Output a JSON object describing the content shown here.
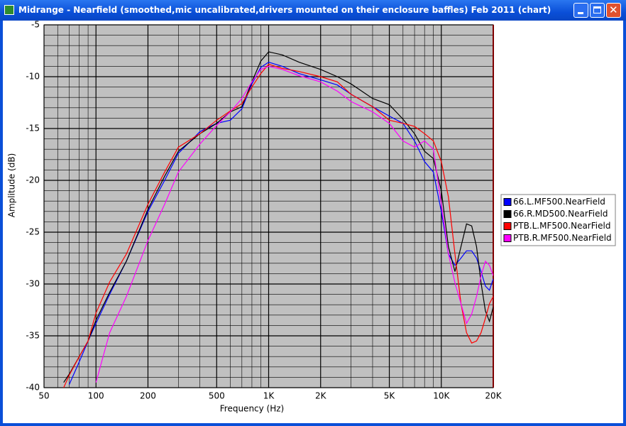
{
  "window": {
    "title": "Midrange - Nearfield (smoothed,mic uncalibrated,drivers mounted on their enclosure baffles) Feb 2011 (chart)"
  },
  "chart_data": {
    "type": "line",
    "x_label": "Frequency (Hz)",
    "y_label": "Amplitude (dB)",
    "x_scale": "log",
    "xlim": [
      50,
      20000
    ],
    "ylim": [
      -40,
      -5
    ],
    "xticks": [
      50,
      100,
      200,
      500,
      {
        "value": 1000,
        "label": "1K"
      },
      {
        "value": 2000,
        "label": "2K"
      },
      {
        "value": 5000,
        "label": "5K"
      },
      {
        "value": 10000,
        "label": "10K"
      },
      {
        "value": 20000,
        "label": "20K"
      }
    ],
    "yticks": [
      -5,
      -10,
      -15,
      -20,
      -25,
      -30,
      -35,
      -40
    ],
    "x_minor_grid": [
      60,
      70,
      80,
      90,
      300,
      400,
      600,
      700,
      800,
      900,
      3000,
      4000,
      6000,
      7000,
      8000,
      9000
    ],
    "y_minor_grid": [
      -6,
      -7,
      -8,
      -9,
      -11,
      -12,
      -13,
      -14,
      -16,
      -17,
      -18,
      -19,
      -21,
      -22,
      -23,
      -24,
      -26,
      -27,
      -28,
      -29,
      -31,
      -32,
      -33,
      -34,
      -36,
      -37,
      -38,
      -39
    ],
    "grid": true,
    "background": "#c0c0c0",
    "legend": "right",
    "x": [
      65,
      70,
      80,
      90,
      100,
      120,
      150,
      200,
      250,
      300,
      400,
      500,
      600,
      700,
      800,
      900,
      1000,
      1200,
      1500,
      2000,
      2500,
      3000,
      4000,
      5000,
      6000,
      7000,
      8000,
      9000,
      10000,
      11000,
      12000,
      13000,
      14000,
      15000,
      16000,
      17000,
      18000,
      19000,
      20000
    ],
    "series": [
      {
        "name": "66.L.MF500.NearField",
        "color": "#0000ff",
        "values": [
          null,
          -39.7,
          -37.5,
          -35.5,
          -33.8,
          -31,
          -27.8,
          -23,
          -20,
          -17.4,
          -15.3,
          -14.5,
          -14.2,
          -13.1,
          -10.7,
          -9.1,
          -8.6,
          -9.0,
          -9.7,
          -10.3,
          -10.8,
          -11.7,
          -12.9,
          -13.8,
          -14.5,
          -16.2,
          -18.2,
          -19.2,
          -23,
          -27.1,
          -28.2,
          -27.5,
          -26.8,
          -26.8,
          -27.5,
          -28.8,
          -30.2,
          -30.6,
          -29.5
        ]
      },
      {
        "name": "66.R.MD500.NearField",
        "color": "#000000",
        "values": [
          -39.5,
          -38.7,
          -37,
          -35.5,
          -33.5,
          -30.8,
          -27.8,
          -22.8,
          -19.6,
          -17.2,
          -15.5,
          -14.5,
          -13.4,
          -12.9,
          -10.5,
          -8.5,
          -7.6,
          -7.9,
          -8.6,
          -9.3,
          -10.0,
          -10.7,
          -12.1,
          -12.7,
          -14.1,
          -15.5,
          -17.2,
          -17.9,
          -21,
          -26.4,
          -28.8,
          -26.4,
          -24.2,
          -24.4,
          -26.4,
          -29.9,
          -32.6,
          -33.6,
          -32.2
        ]
      },
      {
        "name": "PTB.L.MF500.NearField",
        "color": "#ff0000",
        "values": [
          -40,
          -38.8,
          -37,
          -35.5,
          -32.8,
          -29.8,
          -27.1,
          -22.3,
          -19.2,
          -16.8,
          -15.5,
          -14.2,
          -13.3,
          -12.6,
          -11,
          -9.7,
          -8.8,
          -9.2,
          -9.5,
          -10.0,
          -10.5,
          -11.7,
          -12.9,
          -14.2,
          -14.5,
          -14.8,
          -15.5,
          -16.2,
          -18.2,
          -21.6,
          -27.1,
          -31.9,
          -34.7,
          -35.7,
          -35.5,
          -34.7,
          -33.3,
          -31.9,
          -31.2
        ]
      },
      {
        "name": "PTB.R.MF500.NearField",
        "color": "#ff00ff",
        "values": [
          null,
          null,
          null,
          null,
          -39.5,
          -34.7,
          -31.2,
          -25.8,
          -22.3,
          -19.2,
          -16.5,
          -14.7,
          -13.4,
          -12.1,
          -10.5,
          -9.3,
          -9.0,
          -9.3,
          -9.9,
          -10.5,
          -11.4,
          -12.4,
          -13.4,
          -14.5,
          -16.2,
          -16.8,
          -16.2,
          -17.0,
          -22.3,
          -27.1,
          -29.9,
          -31.9,
          -33.8,
          -32.9,
          -31.2,
          -29.2,
          -27.8,
          -28.2,
          -29.2
        ]
      }
    ]
  }
}
